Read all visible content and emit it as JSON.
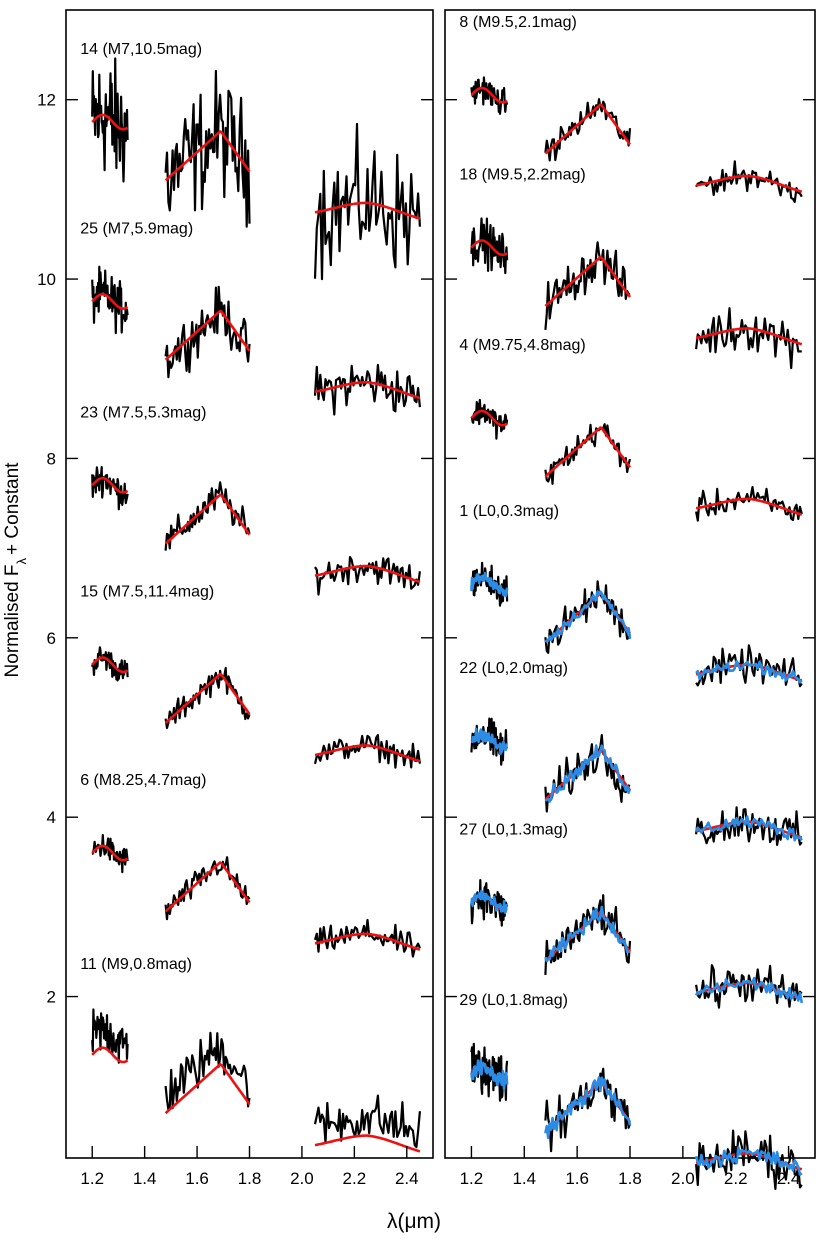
{
  "chart_data": {
    "type": "line",
    "ylabel_main": "Normalised F",
    "ylabel_sub": "λ",
    "ylabel_tail": "+ Constant",
    "xlabel": "λ(μm)",
    "xlim": [
      1.1,
      2.5
    ],
    "ylim": [
      0.2,
      13.0
    ],
    "xticks": [
      "1.2",
      "1.4",
      "1.6",
      "1.8",
      "2.0",
      "2.2",
      "2.4"
    ],
    "yticks": [
      "2",
      "4",
      "6",
      "8",
      "10",
      "12"
    ],
    "colors": {
      "observed": "#000000",
      "model": "#ee1111",
      "model_alt": "#2b8ce6"
    },
    "panels": [
      {
        "name": "left",
        "spectra": [
          {
            "label": "14 (M7,10.5mag)",
            "offset": 11.75,
            "noise": 0.55,
            "model_delta": 0.0,
            "alt_model": false
          },
          {
            "label": "25 (M7,5.9mag)",
            "offset": 9.75,
            "noise": 0.22,
            "model_delta": 0.0,
            "alt_model": false
          },
          {
            "label": "23 (M7.5,5.3mag)",
            "offset": 7.7,
            "noise": 0.14,
            "model_delta": 0.0,
            "alt_model": false
          },
          {
            "label": "15 (M7.5,11.4mag)",
            "offset": 5.7,
            "noise": 0.11,
            "model_delta": 0.0,
            "alt_model": false
          },
          {
            "label": "6 (M8.25,4.7mag)",
            "offset": 3.6,
            "noise": 0.12,
            "model_delta": 0.0,
            "alt_model": false
          },
          {
            "label": "11 (M9,0.8mag)",
            "offset": 1.55,
            "noise": 0.22,
            "model_delta": -0.2,
            "alt_model": false
          }
        ]
      },
      {
        "name": "right",
        "spectra": [
          {
            "label": "8 (M9.5,2.1mag)",
            "offset": 12.05,
            "noise": 0.12,
            "model_delta": 0.0,
            "alt_model": false
          },
          {
            "label": "18 (M9.5,2.2mag)",
            "offset": 10.35,
            "noise": 0.2,
            "model_delta": 0.0,
            "alt_model": false
          },
          {
            "label": "4 (M9.75,4.8mag)",
            "offset": 8.45,
            "noise": 0.12,
            "model_delta": 0.0,
            "alt_model": false
          },
          {
            "label": "1 (L0,0.3mag)",
            "offset": 6.6,
            "noise": 0.15,
            "model_delta": 0.0,
            "alt_model": true
          },
          {
            "label": "22 (L0,2.0mag)",
            "offset": 4.85,
            "noise": 0.18,
            "model_delta": 0.0,
            "alt_model": true
          },
          {
            "label": "27 (L0,1.3mag)",
            "offset": 3.05,
            "noise": 0.18,
            "model_delta": 0.0,
            "alt_model": true
          },
          {
            "label": "29 (L0,1.8mag)",
            "offset": 1.15,
            "noise": 0.22,
            "model_delta": 0.0,
            "alt_model": true
          }
        ]
      }
    ]
  }
}
